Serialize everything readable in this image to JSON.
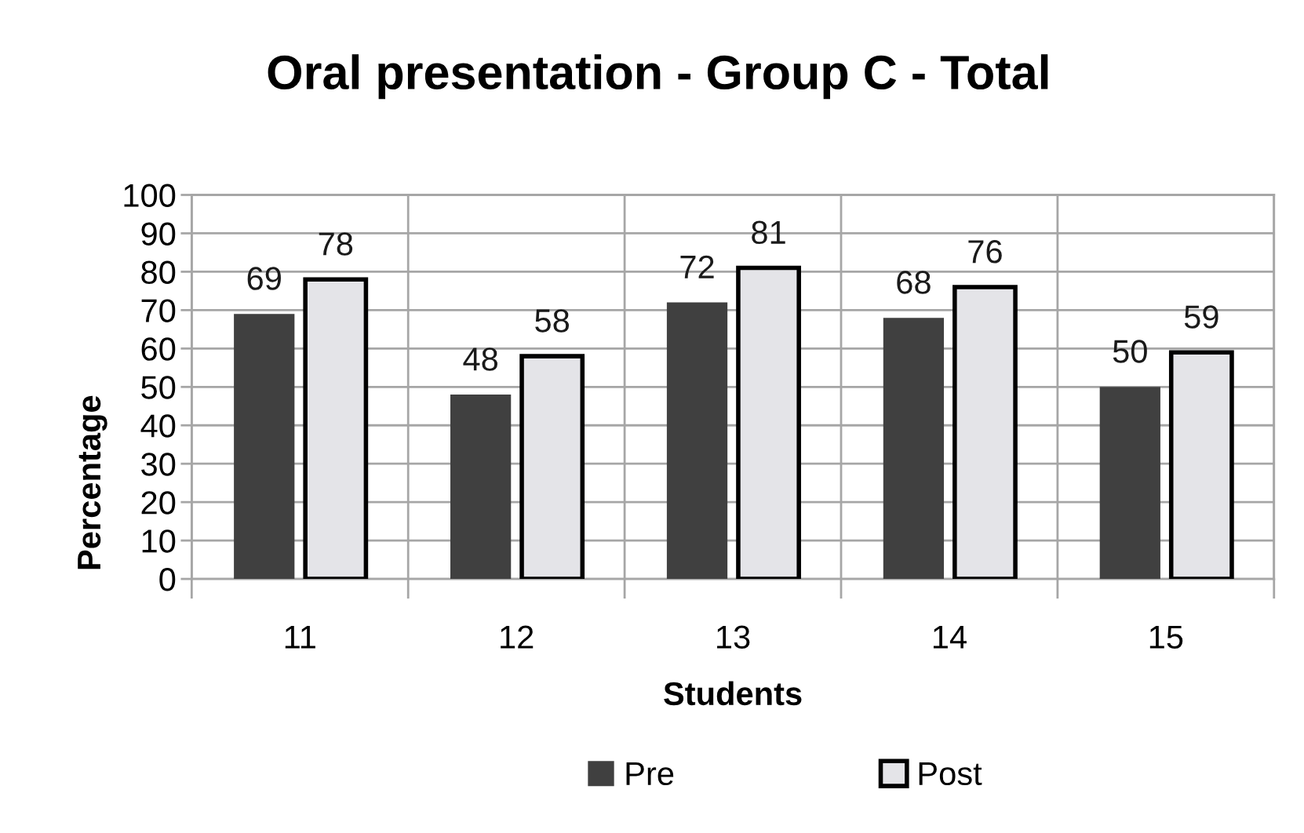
{
  "chart_data": {
    "type": "bar",
    "title": "Oral presentation - Group C - Total",
    "xlabel": "Students",
    "ylabel": "Percentage",
    "categories": [
      "11",
      "12",
      "13",
      "14",
      "15"
    ],
    "series": [
      {
        "name": "Pre",
        "color": "#404040",
        "values": [
          69,
          48,
          72,
          68,
          50
        ]
      },
      {
        "name": "Post",
        "color": "#e4e4e8",
        "values": [
          78,
          58,
          81,
          76,
          59
        ]
      }
    ],
    "ylim": [
      0,
      100
    ],
    "yticks": [
      0,
      10,
      20,
      30,
      40,
      50,
      60,
      70,
      80,
      90,
      100
    ],
    "grid": true,
    "legend": "bottom",
    "data_labels": true
  }
}
